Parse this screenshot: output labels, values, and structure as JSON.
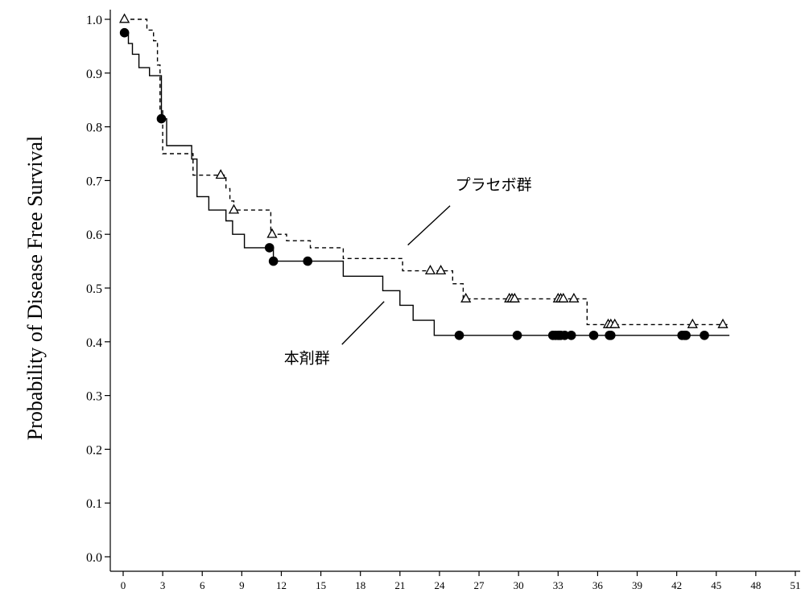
{
  "chart_data": {
    "type": "line",
    "subtype": "kaplan-meier",
    "title": "",
    "ylabel": "Probability of Disease Free Survival",
    "xlabel": "",
    "xlim": [
      0,
      51
    ],
    "ylim": [
      0,
      1.0
    ],
    "xticks": [
      0,
      3,
      6,
      9,
      12,
      15,
      18,
      21,
      24,
      27,
      30,
      33,
      36,
      39,
      42,
      45,
      48,
      51
    ],
    "yticks": [
      "0.0",
      "0.1",
      "0.2",
      "0.3",
      "0.4",
      "0.5",
      "0.6",
      "0.7",
      "0.8",
      "0.9",
      "1.0"
    ],
    "grid": false,
    "series": [
      {
        "name": "本剤群",
        "line_style": "solid",
        "marker": "filled-circle",
        "color": "#000000",
        "steps": [
          [
            0,
            0.975
          ],
          [
            0.4,
            0.955
          ],
          [
            0.7,
            0.935
          ],
          [
            1.2,
            0.91
          ],
          [
            2.0,
            0.895
          ],
          [
            2.9,
            0.815
          ],
          [
            3.3,
            0.765
          ],
          [
            5.2,
            0.74
          ],
          [
            5.6,
            0.67
          ],
          [
            6.5,
            0.645
          ],
          [
            7.8,
            0.625
          ],
          [
            8.3,
            0.6
          ],
          [
            9.2,
            0.575
          ],
          [
            11.4,
            0.55
          ],
          [
            16.7,
            0.522
          ],
          [
            19.7,
            0.495
          ],
          [
            21.0,
            0.468
          ],
          [
            22.0,
            0.44
          ],
          [
            23.6,
            0.412
          ],
          [
            46.0,
            0.412
          ]
        ],
        "censor_times": [
          0.1,
          2.9,
          11.1,
          11.4,
          14.0,
          25.5,
          29.9,
          32.6,
          32.8,
          33.0,
          33.1,
          33.2,
          33.5,
          34.0,
          35.7,
          36.9,
          37.0,
          42.4,
          42.6,
          42.7,
          44.1
        ]
      },
      {
        "name": "プラセボ群",
        "line_style": "dashed",
        "marker": "open-triangle",
        "color": "#000000",
        "steps": [
          [
            0,
            1.0
          ],
          [
            1.8,
            0.98
          ],
          [
            2.3,
            0.96
          ],
          [
            2.6,
            0.915
          ],
          [
            2.8,
            0.83
          ],
          [
            3.0,
            0.75
          ],
          [
            5.3,
            0.71
          ],
          [
            7.8,
            0.685
          ],
          [
            8.1,
            0.662
          ],
          [
            8.4,
            0.645
          ],
          [
            11.2,
            0.6
          ],
          [
            12.4,
            0.588
          ],
          [
            14.2,
            0.575
          ],
          [
            16.7,
            0.555
          ],
          [
            21.2,
            0.532
          ],
          [
            25.0,
            0.508
          ],
          [
            25.8,
            0.48
          ],
          [
            35.2,
            0.432
          ],
          [
            46.0,
            0.432
          ]
        ],
        "censor_times": [
          0.1,
          7.4,
          8.4,
          11.3,
          23.3,
          24.1,
          26.0,
          29.3,
          29.5,
          29.7,
          33.0,
          33.2,
          33.4,
          34.2,
          36.8,
          37.0,
          37.3,
          43.2,
          45.5
        ]
      }
    ],
    "annotations": [
      {
        "text": "プラセボ群",
        "series": "プラセボ群",
        "label_at": [
          25.2,
          0.683
        ],
        "pointer_from": [
          24.8,
          0.653
        ],
        "pointer_to": [
          21.6,
          0.58
        ]
      },
      {
        "text": "本剤群",
        "series": "本剤群",
        "label_at": [
          12.2,
          0.36
        ],
        "pointer_from": [
          16.6,
          0.395
        ],
        "pointer_to": [
          19.8,
          0.475
        ]
      }
    ]
  }
}
